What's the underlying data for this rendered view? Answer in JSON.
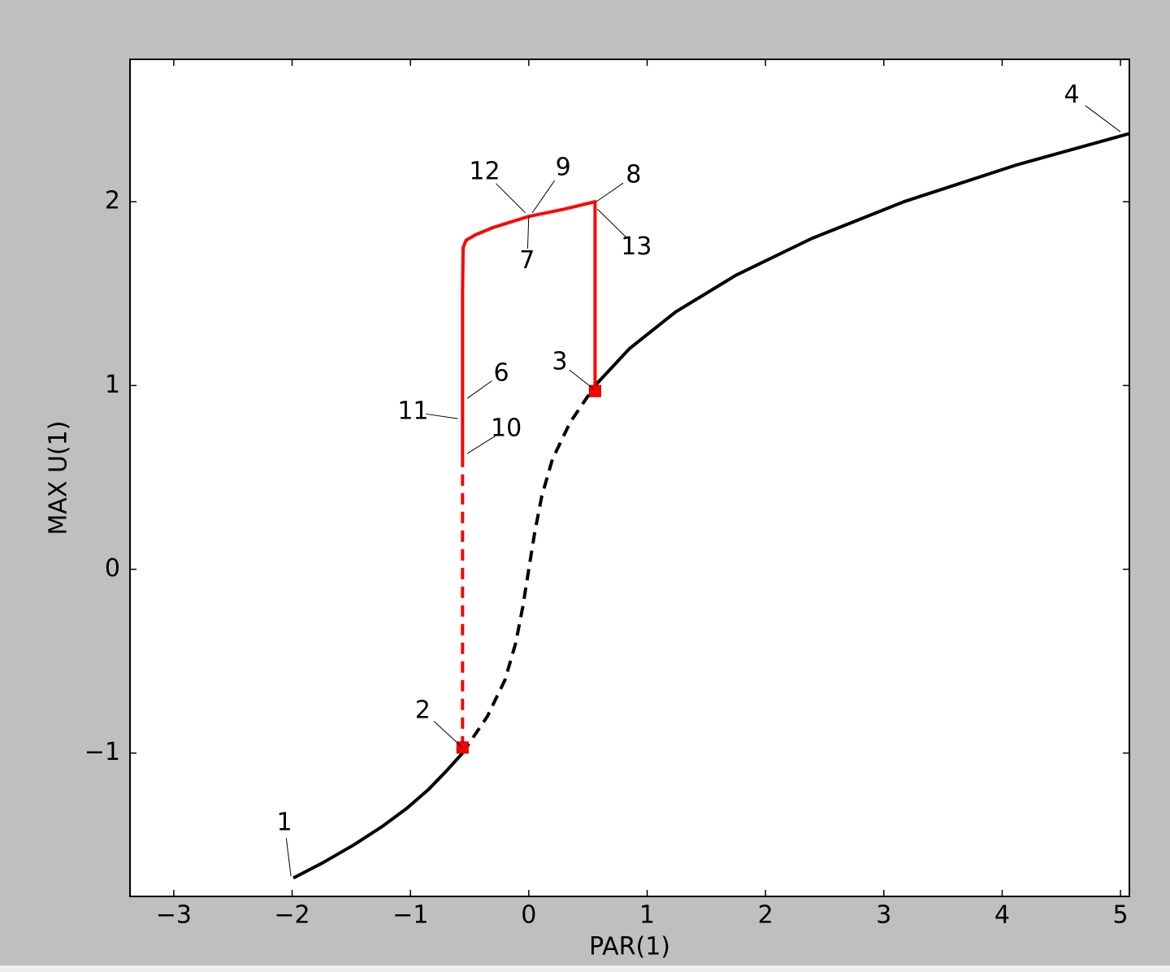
{
  "chart_data": {
    "type": "line",
    "x_label": "PAR(1)",
    "y_label": "MAX U(1)",
    "xlim": [
      -3.37,
      5.075
    ],
    "ylim": [
      -1.78,
      2.775
    ],
    "xticks": [
      {
        "value": -3,
        "label": "−3"
      },
      {
        "value": -2,
        "label": "−2"
      },
      {
        "value": -1,
        "label": "−1"
      },
      0,
      1,
      2,
      3,
      4,
      5
    ],
    "yticks": [
      {
        "value": -1,
        "label": "−1"
      },
      0,
      1,
      2
    ],
    "series": [
      {
        "color": "#000000",
        "style": "solid",
        "x": [
          -1.99,
          -1.75,
          -1.48,
          -1.24,
          -1.03,
          -0.85,
          -0.7,
          -0.56
        ],
        "values": [
          -1.68,
          -1.6,
          -1.5,
          -1.4,
          -1.3,
          -1.2,
          -1.1,
          -1.0
        ]
      },
      {
        "color": "#000000",
        "style": "dashed",
        "x": [
          -0.56,
          -0.35,
          -0.2,
          -0.11,
          -0.05,
          0,
          0.05,
          0.11,
          0.2,
          0.35,
          0.56
        ],
        "values": [
          -1.0,
          -0.8,
          -0.6,
          -0.4,
          -0.2,
          0,
          0.2,
          0.4,
          0.6,
          0.8,
          1.0
        ]
      },
      {
        "color": "#000000",
        "style": "solid",
        "x": [
          0.56,
          0.85,
          1.24,
          1.75,
          2.39,
          3.17,
          4.12,
          5.07
        ],
        "values": [
          1.0,
          1.2,
          1.4,
          1.6,
          1.8,
          2.0,
          2.2,
          2.37
        ]
      },
      {
        "color": "#ff0000",
        "style": "dashed",
        "x": [
          -0.56,
          -0.56
        ],
        "values": [
          -0.97,
          0.6
        ]
      },
      {
        "color": "#ff0000",
        "style": "solid",
        "x": [
          -0.56,
          -0.56,
          -0.56,
          -0.555,
          -0.53,
          -0.45,
          -0.3,
          0,
          0.3,
          0.56,
          0.56,
          0.56
        ],
        "values": [
          0.6,
          1.0,
          1.5,
          1.75,
          1.79,
          1.82,
          1.86,
          1.92,
          1.96,
          2.0,
          1.5,
          0.98
        ]
      },
      {
        "color": "#ff0000",
        "style": "none",
        "marker": "square",
        "x": [
          -0.56,
          0.56
        ],
        "values": [
          -0.97,
          0.97
        ]
      }
    ],
    "annotations": [
      {
        "text": "1",
        "x": -2.01,
        "y": -1.67
      },
      {
        "text": "2",
        "x": -0.56,
        "y": -0.97
      },
      {
        "text": "3",
        "x": 0.55,
        "y": 0.98
      },
      {
        "text": "4",
        "x": 5.0,
        "y": 2.38
      },
      {
        "text": "6",
        "x": -0.52,
        "y": 0.93
      },
      {
        "text": "7",
        "x": 0,
        "y": 1.92
      },
      {
        "text": "8",
        "x": 0.57,
        "y": 2.0
      },
      {
        "text": "9",
        "x": 0.03,
        "y": 1.94
      },
      {
        "text": "10",
        "x": -0.52,
        "y": 0.63
      },
      {
        "text": "11",
        "x": -0.6,
        "y": 0.82
      },
      {
        "text": "12",
        "x": -0.03,
        "y": 1.94
      },
      {
        "text": "13",
        "x": 0.58,
        "y": 1.96
      }
    ]
  }
}
